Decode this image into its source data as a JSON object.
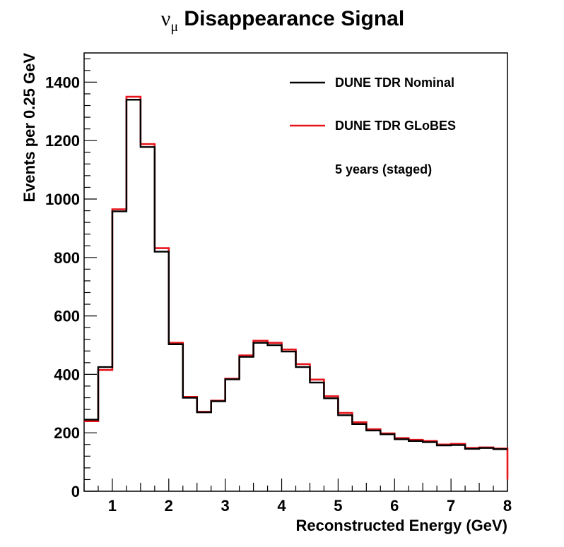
{
  "chart_data": {
    "type": "line",
    "title_symbol": "ν",
    "title_subscript": "μ",
    "title_rest": " Disappearance Signal",
    "xlabel": "Reconstructed Energy (GeV)",
    "ylabel": "Events per 0.25 GeV",
    "xlim": [
      0.5,
      8
    ],
    "ylim": [
      0,
      1500
    ],
    "x_ticks": [
      1,
      2,
      3,
      4,
      5,
      6,
      7,
      8
    ],
    "y_ticks": [
      0,
      200,
      400,
      600,
      800,
      1000,
      1200,
      1400
    ],
    "bin_edges": [
      0.5,
      0.75,
      1.0,
      1.25,
      1.5,
      1.75,
      2.0,
      2.25,
      2.5,
      2.75,
      3.0,
      3.25,
      3.5,
      3.75,
      4.0,
      4.25,
      4.5,
      4.75,
      5.0,
      5.25,
      5.5,
      5.75,
      6.0,
      6.25,
      6.5,
      6.75,
      7.0,
      7.25,
      7.5,
      7.75,
      8.0
    ],
    "series": [
      {
        "name": "DUNE TDR GLoBES",
        "color": "#e8141c",
        "values": [
          240,
          415,
          965,
          1350,
          1188,
          832,
          508,
          323,
          272,
          310,
          385,
          465,
          515,
          508,
          485,
          435,
          382,
          325,
          268,
          236,
          212,
          198,
          182,
          176,
          172,
          160,
          162,
          148,
          150,
          146
        ]
      },
      {
        "name": "DUNE TDR Nominal",
        "color": "#000000",
        "values": [
          245,
          425,
          958,
          1340,
          1178,
          820,
          503,
          320,
          270,
          308,
          383,
          460,
          508,
          500,
          478,
          425,
          372,
          318,
          260,
          230,
          208,
          195,
          178,
          172,
          168,
          157,
          158,
          145,
          148,
          144
        ]
      }
    ],
    "legend_position": "top-right",
    "annotation": "5 years (staged)",
    "grid": false
  }
}
